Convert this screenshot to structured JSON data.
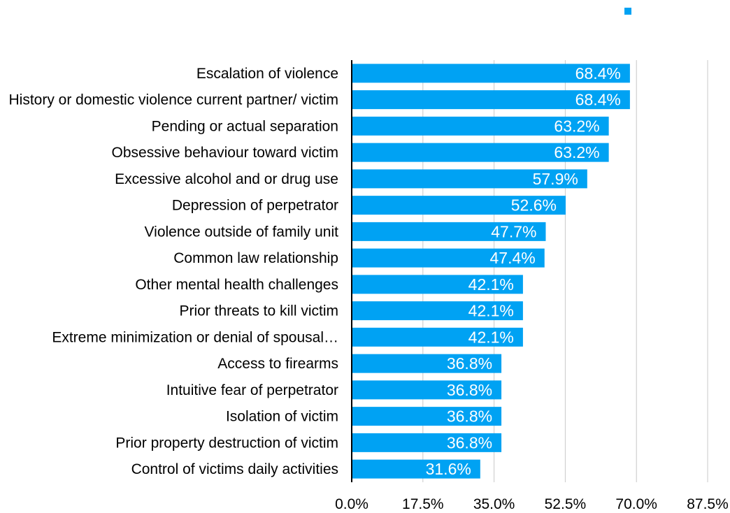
{
  "chart_data": {
    "type": "bar",
    "orientation": "horizontal",
    "title": "",
    "xlabel": "",
    "ylabel": "",
    "xlim": [
      0,
      87.5
    ],
    "ticks": [
      0,
      17.5,
      35,
      52.5,
      70,
      87.5
    ],
    "tick_labels": [
      "0.0%",
      "17.5%",
      "35.0%",
      "52.5%",
      "70.0%",
      "87.5%"
    ],
    "grid": "vertical",
    "legend": "top-right",
    "bar_color": "#00a2f3",
    "categories": [
      "Escalation of violence",
      "History or domestic violence current partner/ victim",
      "Pending or actual separation",
      "Obsessive behaviour toward victim",
      "Excessive alcohol and or drug use",
      "Depression of perpetrator",
      "Violence outside of family unit",
      "Common law relationship",
      "Other mental health challenges",
      "Prior threats to kill victim",
      "Extreme minimization or denial of spousal…",
      "Access to firearms",
      "Intuitive fear of perpetrator",
      "Isolation of victim",
      "Prior property destruction of victim",
      "Control of victims daily activities"
    ],
    "values": [
      68.4,
      68.4,
      63.2,
      63.2,
      57.9,
      52.6,
      47.7,
      47.4,
      42.1,
      42.1,
      42.1,
      36.8,
      36.8,
      36.8,
      36.8,
      31.6
    ],
    "value_labels": [
      "68.4%",
      "68.4%",
      "63.2%",
      "63.2%",
      "57.9%",
      "52.6%",
      "47.7%",
      "47.4%",
      "42.1%",
      "42.1%",
      "42.1%",
      "36.8%",
      "36.8%",
      "36.8%",
      "36.8%",
      "31.6%"
    ]
  }
}
